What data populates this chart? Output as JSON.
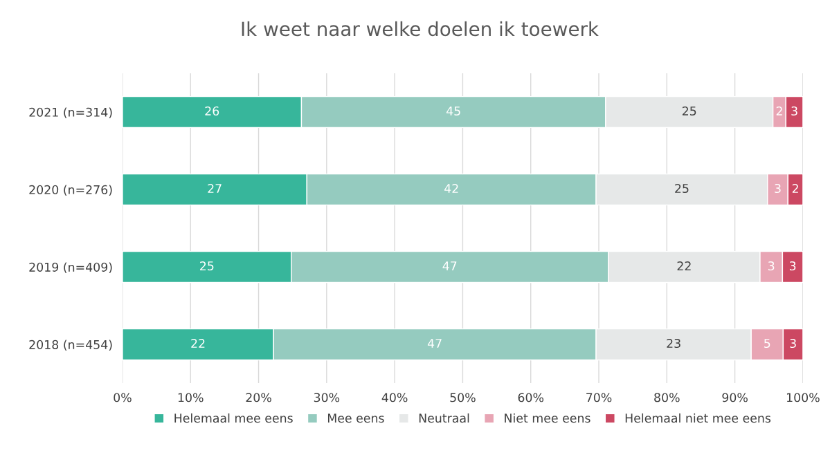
{
  "chart_data": {
    "type": "bar",
    "orientation": "horizontal",
    "stacked": true,
    "title": "Ik weet naar welke doelen ik toewerk",
    "categories": [
      "2021 (n=314)",
      "2020 (n=276)",
      "2019 (n=409)",
      "2018 (n=454)"
    ],
    "series": [
      {
        "name": "Helemaal mee eens",
        "color": "#37b69b",
        "values": [
          26.3,
          27.1,
          24.8,
          22.2
        ],
        "value_labels": [
          "26",
          "27",
          "25",
          "22"
        ]
      },
      {
        "name": "Mee eens",
        "color": "#95cbbf",
        "values": [
          44.7,
          42.5,
          46.6,
          47.4
        ],
        "value_labels": [
          "45",
          "42",
          "47",
          "47"
        ]
      },
      {
        "name": "Neutraal",
        "color": "#e6e8e8",
        "values": [
          24.6,
          25.2,
          22.3,
          22.8
        ],
        "value_labels": [
          "25",
          "25",
          "22",
          "23"
        ]
      },
      {
        "name": "Niet mee eens",
        "color": "#e8a5b4",
        "values": [
          1.9,
          3.0,
          3.3,
          4.7
        ],
        "value_labels": [
          "2",
          "3",
          "3",
          "5"
        ]
      },
      {
        "name": "Helemaal niet mee eens",
        "color": "#cc4862",
        "values": [
          2.5,
          2.2,
          3.0,
          2.9
        ],
        "value_labels": [
          "3",
          "2",
          "3",
          "3"
        ]
      }
    ],
    "xlim": [
      0,
      100
    ],
    "xticks": [
      {
        "value": 0,
        "label": "0%"
      },
      {
        "value": 10,
        "label": "10%"
      },
      {
        "value": 20,
        "label": "20%"
      },
      {
        "value": 30,
        "label": "30%"
      },
      {
        "value": 40,
        "label": "40%"
      },
      {
        "value": 50,
        "label": "50%"
      },
      {
        "value": 60,
        "label": "60%"
      },
      {
        "value": 70,
        "label": "70%"
      },
      {
        "value": 80,
        "label": "80%"
      },
      {
        "value": 90,
        "label": "90%"
      },
      {
        "value": 100,
        "label": "100%"
      }
    ],
    "grid": "x",
    "legend": "bottom"
  }
}
